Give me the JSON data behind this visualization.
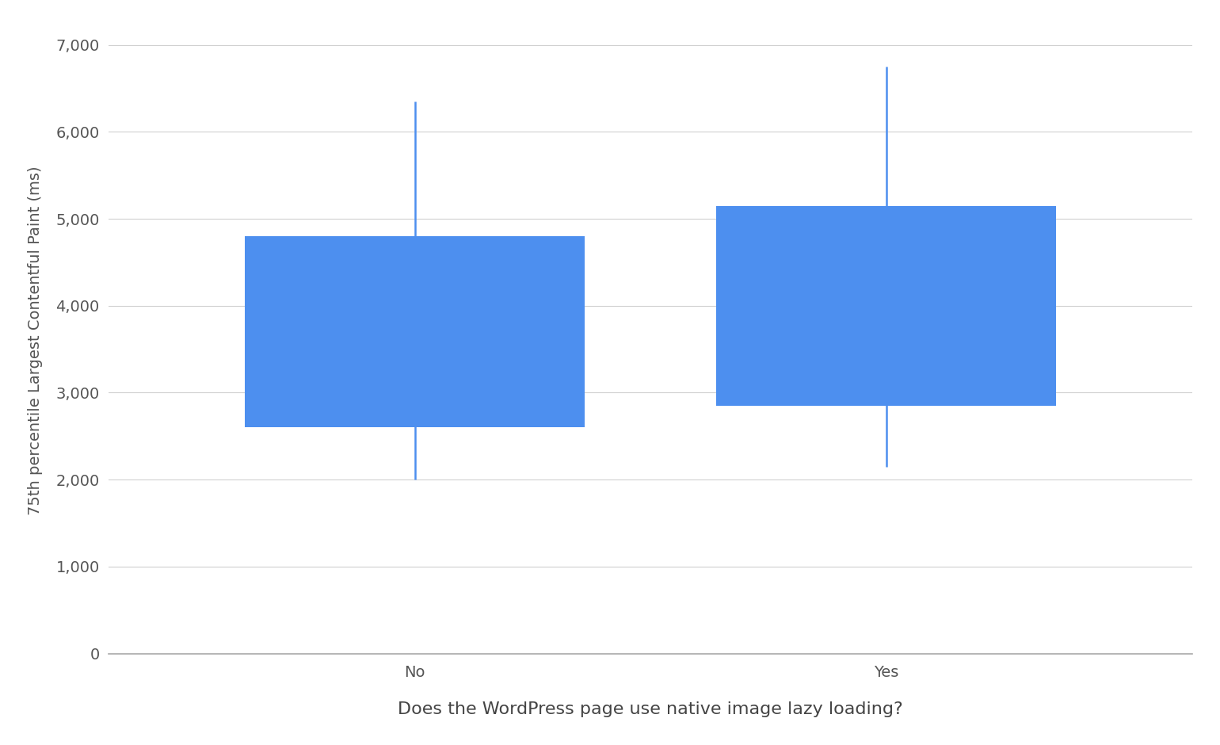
{
  "categories": [
    "No",
    "Yes"
  ],
  "boxes": [
    {
      "q1": 2600,
      "q3": 4800,
      "whisker_low": 2000,
      "whisker_high": 6350
    },
    {
      "q1": 2850,
      "q3": 5150,
      "whisker_low": 2150,
      "whisker_high": 6750
    }
  ],
  "box_color": "#4d8fef",
  "whisker_color": "#4d8fef",
  "background_color": "#ffffff",
  "grid_color": "#d0d0d0",
  "ylabel": "75th percentile Largest Contentful Paint (ms)",
  "xlabel": "Does the WordPress page use native image lazy loading?",
  "ylim": [
    0,
    7200
  ],
  "yticks": [
    0,
    1000,
    2000,
    3000,
    4000,
    5000,
    6000,
    7000
  ],
  "ytick_labels": [
    "0",
    "1,000",
    "2,000",
    "3,000",
    "4,000",
    "5,000",
    "6,000",
    "7,000"
  ],
  "ylabel_fontsize": 14,
  "xlabel_fontsize": 16,
  "tick_fontsize": 14,
  "box_width": 0.72,
  "whisker_linewidth": 1.8,
  "x_positions": [
    1,
    2
  ],
  "xlim": [
    0.35,
    2.65
  ]
}
